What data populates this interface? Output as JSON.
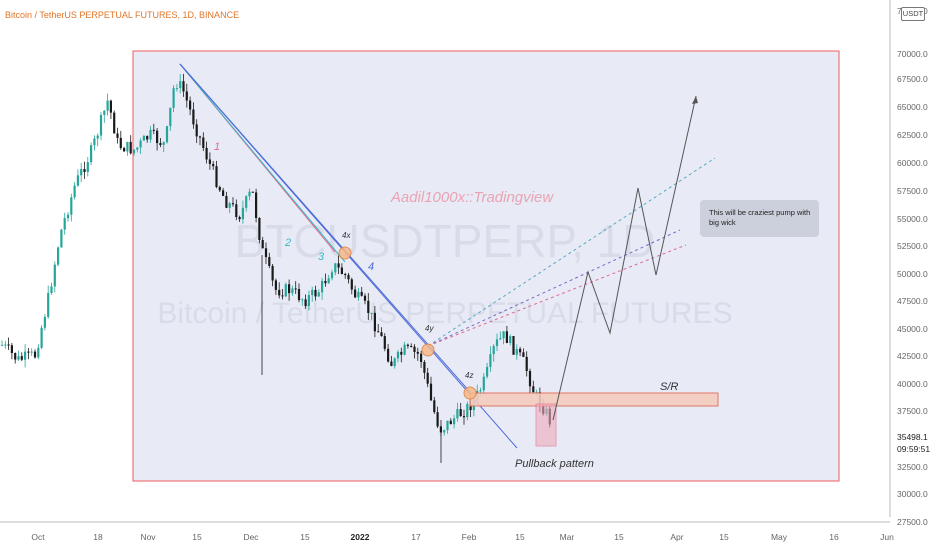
{
  "title": "Bitcoin / TetherUS PERPETUAL FUTURES, 1D, BINANCE",
  "currency": "USDT",
  "watermark": {
    "author": "Aadil1000x::Tradingview",
    "symbol": "BTCUSDTPERP, 1D",
    "description": "Bitcoin / TetherUS PERPETUAL FUTURES"
  },
  "price_axis": {
    "labels": [
      "72500.0",
      "70000.0",
      "67500.0",
      "65000.0",
      "62500.0",
      "60000.0",
      "57500.0",
      "55000.0",
      "52500.0",
      "50000.0",
      "47500.0",
      "45000.0",
      "42500.0",
      "40000.0",
      "37500.0",
      "32500.0",
      "30000.0",
      "27500.0"
    ],
    "current_price": "35498.1",
    "countdown": "09:59:51"
  },
  "time_axis": {
    "labels": [
      "Oct",
      "18",
      "Nov",
      "15",
      "Dec",
      "15",
      "2022",
      "17",
      "Feb",
      "15",
      "Mar",
      "15",
      "Apr",
      "15",
      "May",
      "16",
      "Jun"
    ]
  },
  "annotations": {
    "wave_1": "1",
    "wave_2": "2",
    "wave_3": "3",
    "wave_4": "4",
    "touch_4x": "4x",
    "touch_4y": "4y",
    "touch_4z": "4z",
    "sr_label": "S/R",
    "pullback_label": "Pullback pattern",
    "callout": [
      "This will be craziest pump with",
      "big wick"
    ]
  },
  "colors": {
    "up_candle": "#26a69a",
    "down_candle": "#1a1a1a",
    "highlight_box": "#e8ebf6",
    "highlight_border": "#f25c5c",
    "trendline_blue": "#4e6ad9",
    "trendline_teal": "#38b8c4",
    "trendline_pink": "#e06a8e",
    "sr_zone": "#f5cbbd",
    "projection_line": "#555555",
    "title": "#e0762a"
  }
}
